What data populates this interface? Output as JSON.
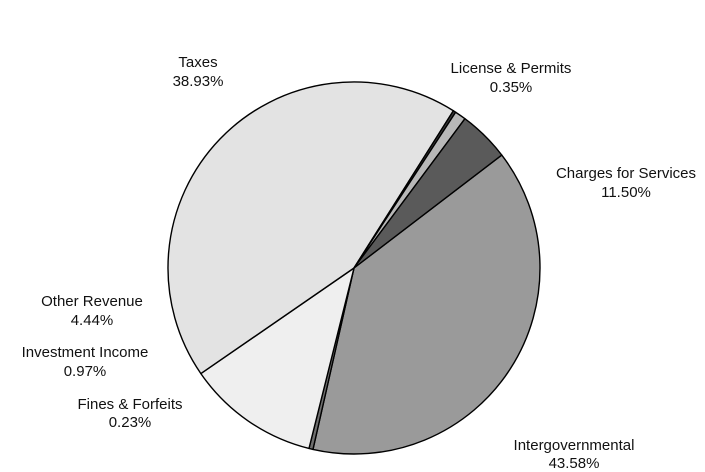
{
  "chart_data": {
    "type": "pie",
    "title": "",
    "slices": [
      {
        "label": "Taxes",
        "value_label": "38.93%",
        "value": 38.93,
        "color": "#9a9a9a"
      },
      {
        "label": "License & Permits",
        "value_label": "0.35%",
        "value": 0.35,
        "color": "#6e6e6e"
      },
      {
        "label": "Charges for Services",
        "value_label": "11.50%",
        "value": 11.5,
        "color": "#efefef"
      },
      {
        "label": "Intergovernmental",
        "value_label": "43.58%",
        "value": 43.58,
        "color": "#e3e3e3"
      },
      {
        "label": "Fines & Forfeits",
        "value_label": "0.23%",
        "value": 0.23,
        "color": "#3a3a3a"
      },
      {
        "label": "Investment Income",
        "value_label": "0.97%",
        "value": 0.97,
        "color": "#b8b8b8"
      },
      {
        "label": "Other Revenue",
        "value_label": "4.44%",
        "value": 4.44,
        "color": "#5a5a5a"
      }
    ],
    "start_direction": "upper-right",
    "direction": "clockwise",
    "labels": "outside, name above percentage",
    "legend": "none"
  }
}
